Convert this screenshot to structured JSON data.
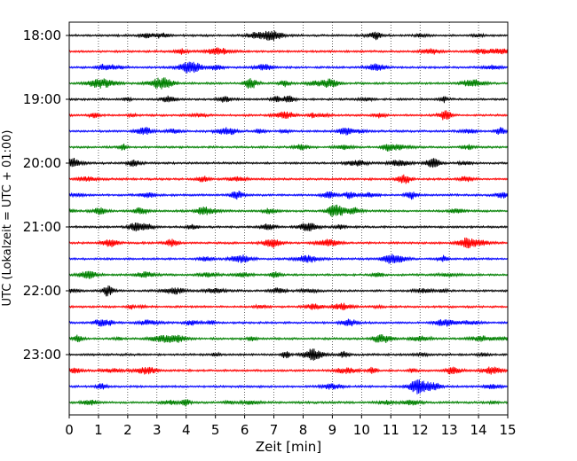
{
  "chart_data": {
    "type": "line",
    "title": "",
    "xlabel": "Zeit  [min]",
    "ylabel": "UTC (Lokalzeit = UTC + 01:00)",
    "xlim": [
      0,
      15
    ],
    "x_ticks": [
      0,
      1,
      2,
      3,
      4,
      5,
      6,
      7,
      8,
      9,
      10,
      11,
      12,
      13,
      14,
      15
    ],
    "y_tick_labels": [
      "18:00",
      "19:00",
      "20:00",
      "21:00",
      "22:00",
      "23:00"
    ],
    "rows_per_hour": 4,
    "minutes_per_row": 15,
    "grid": "vertical dotted",
    "trace_colors": [
      "#000000",
      "#ff0000",
      "#0000ff",
      "#008000"
    ],
    "traces": [
      {
        "start": "18:00",
        "color": "#000000"
      },
      {
        "start": "18:15",
        "color": "#ff0000"
      },
      {
        "start": "18:30",
        "color": "#0000ff"
      },
      {
        "start": "18:45",
        "color": "#008000"
      },
      {
        "start": "19:00",
        "color": "#000000"
      },
      {
        "start": "19:15",
        "color": "#ff0000"
      },
      {
        "start": "19:30",
        "color": "#0000ff"
      },
      {
        "start": "19:45",
        "color": "#008000"
      },
      {
        "start": "20:00",
        "color": "#000000"
      },
      {
        "start": "20:15",
        "color": "#ff0000"
      },
      {
        "start": "20:30",
        "color": "#0000ff"
      },
      {
        "start": "20:45",
        "color": "#008000"
      },
      {
        "start": "21:00",
        "color": "#000000"
      },
      {
        "start": "21:15",
        "color": "#ff0000"
      },
      {
        "start": "21:30",
        "color": "#0000ff"
      },
      {
        "start": "21:45",
        "color": "#008000"
      },
      {
        "start": "22:00",
        "color": "#000000"
      },
      {
        "start": "22:15",
        "color": "#ff0000"
      },
      {
        "start": "22:30",
        "color": "#0000ff"
      },
      {
        "start": "22:45",
        "color": "#008000"
      },
      {
        "start": "23:00",
        "color": "#000000"
      },
      {
        "start": "23:15",
        "color": "#ff0000"
      },
      {
        "start": "23:30",
        "color": "#0000ff"
      },
      {
        "start": "23:45",
        "color": "#008000"
      }
    ]
  }
}
